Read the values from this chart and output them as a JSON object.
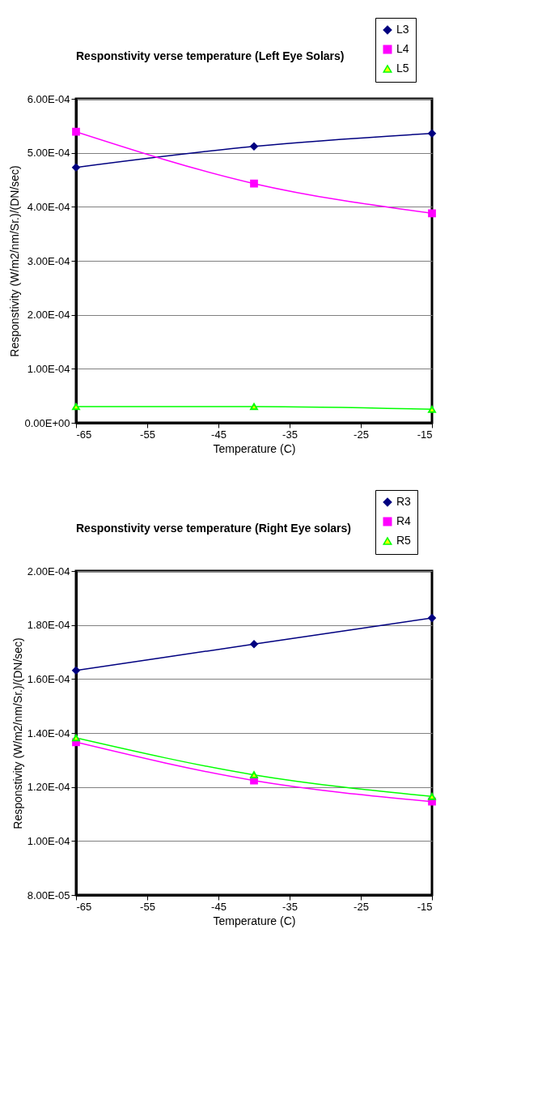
{
  "chart_data": [
    {
      "type": "line",
      "title": "Responstivity verse temperature (Left Eye Solars)",
      "xlabel": "Temperature (C)",
      "ylabel": "Responstivity (W/m2/nm/Sr.)/(DN/sec)",
      "x": [
        -65,
        -40,
        -15
      ],
      "series": [
        {
          "name": "L3",
          "color": "#000080",
          "marker": "diamond",
          "values": [
            0.000473,
            0.000512,
            0.000536
          ]
        },
        {
          "name": "L4",
          "color": "#ff00ff",
          "marker": "square",
          "values": [
            0.000539,
            0.000443,
            0.000388
          ]
        },
        {
          "name": "L5",
          "color": "#00ff00",
          "colors": [
            "#ffff00",
            "#ffff00",
            "#ffff00"
          ],
          "marker": "triangle",
          "values": [
            3e-05,
            3e-05,
            2.5e-05
          ]
        }
      ],
      "xlim": [
        -65,
        -15
      ],
      "xticks": [
        -65,
        -55,
        -45,
        -35,
        -25,
        -15
      ],
      "ylim": [
        0,
        0.0006
      ],
      "yticks": [
        {
          "value": 0,
          "label": "0.00E+00"
        },
        {
          "value": 0.0001,
          "label": "1.00E-04"
        },
        {
          "value": 0.0002,
          "label": "2.00E-04"
        },
        {
          "value": 0.0003,
          "label": "3.00E-04"
        },
        {
          "value": 0.0004,
          "label": "4.00E-04"
        },
        {
          "value": 0.0005,
          "label": "5.00E-04"
        },
        {
          "value": 0.0006,
          "label": "6.00E-04"
        }
      ],
      "grid": "y",
      "legend": "top right"
    },
    {
      "type": "line",
      "title": "Responstivity verse temperature (Right Eye solars)",
      "xlabel": "Temperature (C)",
      "ylabel": "Responstivity (W/m2/nm/Sr.)/(DN/sec)",
      "x": [
        -65,
        -40,
        -15
      ],
      "series": [
        {
          "name": "R3",
          "color": "#000080",
          "marker": "diamond",
          "values": [
            0.0001632,
            0.0001729,
            0.0001826
          ]
        },
        {
          "name": "R4",
          "color": "#ff00ff",
          "marker": "square",
          "values": [
            0.0001366,
            0.0001224,
            0.0001146
          ]
        },
        {
          "name": "R5",
          "color": "#00ff00",
          "colors": [
            "#ffff00",
            "#ffff00",
            "#ffff00"
          ],
          "marker": "triangle",
          "values": [
            0.0001382,
            0.0001245,
            0.0001165
          ]
        }
      ],
      "xlim": [
        -65,
        -15
      ],
      "xticks": [
        -65,
        -55,
        -45,
        -35,
        -25,
        -15
      ],
      "ylim": [
        8e-05,
        0.0002
      ],
      "yticks": [
        {
          "value": 8e-05,
          "label": "8.00E-05"
        },
        {
          "value": 0.0001,
          "label": "1.00E-04"
        },
        {
          "value": 0.00012,
          "label": "1.20E-04"
        },
        {
          "value": 0.00014,
          "label": "1.40E-04"
        },
        {
          "value": 0.00016,
          "label": "1.60E-04"
        },
        {
          "value": 0.00018,
          "label": "1.80E-04"
        },
        {
          "value": 0.0002,
          "label": "2.00E-04"
        }
      ],
      "grid": "y",
      "legend": "top right"
    }
  ]
}
